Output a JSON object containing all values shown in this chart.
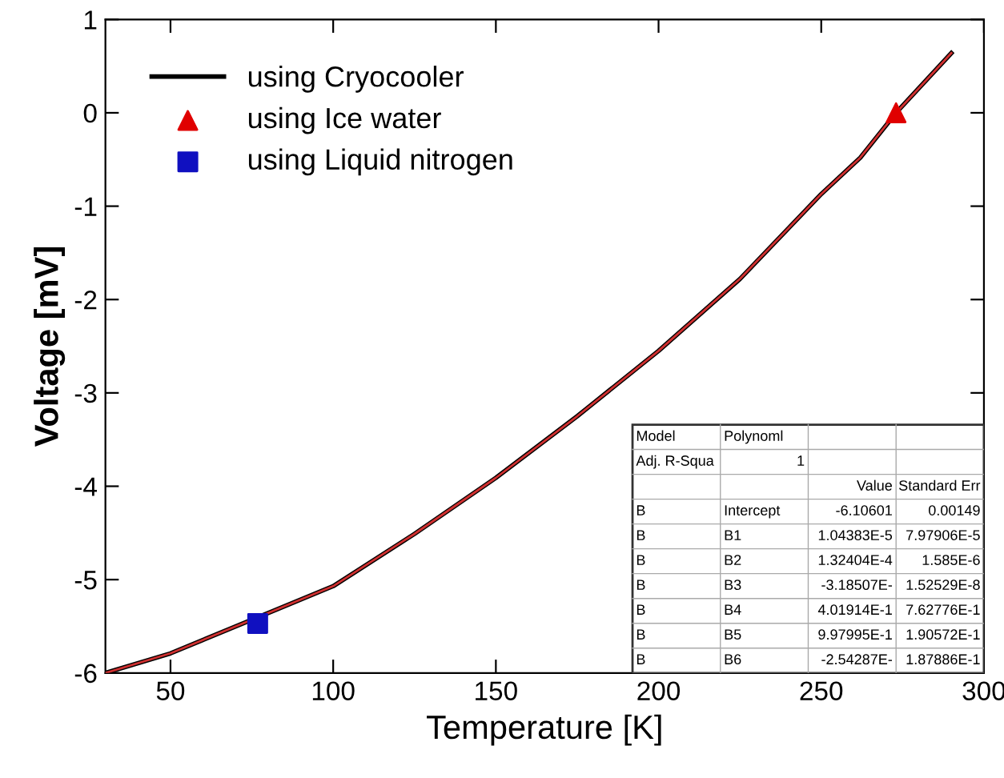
{
  "chart_data": {
    "type": "line",
    "xlabel": "Temperature [K]",
    "ylabel": "Voltage [mV]",
    "xlim": [
      30,
      300
    ],
    "xticks": [
      50,
      100,
      150,
      200,
      250,
      300
    ],
    "ylim": [
      -6,
      1
    ],
    "yticks": [
      -6,
      -5,
      -4,
      -3,
      -2,
      -1,
      0,
      1
    ],
    "grid": false,
    "legend": "top left",
    "series": [
      {
        "name": "using Cryocooler",
        "color": "#000000",
        "x": [
          30,
          50,
          100,
          125,
          150,
          175,
          200,
          225,
          250,
          262,
          273,
          290
        ],
        "values": [
          -6.0,
          -5.79,
          -5.07,
          -4.51,
          -3.91,
          -3.25,
          -2.55,
          -1.78,
          -0.87,
          -0.48,
          0.0,
          0.64
        ]
      },
      {
        "color": "#d03030",
        "x": [
          30,
          50,
          100,
          125,
          150,
          175,
          200,
          225,
          250,
          262,
          273,
          290
        ],
        "values": [
          -6.0,
          -5.79,
          -5.07,
          -4.51,
          -3.91,
          -3.25,
          -2.55,
          -1.78,
          -0.87,
          -0.48,
          0.0,
          0.64
        ]
      },
      {
        "name": "using Ice water",
        "type": "scatter",
        "marker": "triangle",
        "color": "#e00000",
        "x": [
          273
        ],
        "values": [
          0.0
        ]
      },
      {
        "name": "using Liquid nitrogen",
        "type": "scatter",
        "marker": "square",
        "color": "#1010c0",
        "x": [
          76.8
        ],
        "values": [
          -5.47
        ]
      }
    ],
    "annotations": [
      "Model\tPolynoml\t\t",
      "Adj. R-Squa\t1\t\t",
      "\t\tValue\tStandard Err",
      "B\tIntercept\t-6.10601\t0.00149",
      "B\tB1\t1.04383E-5\t7.97906E-5",
      "B\tB2\t1.32404E-4\t1.585E-6",
      "B\tB3\t-3.18507E-\t1.52529E-8",
      "B\tB4\t4.01914E-1\t7.62776E-1",
      "B\tB5\t9.97995E-1\t1.90572E-1",
      "B\tB6\t-2.54287E-\t1.87886E-1"
    ]
  }
}
